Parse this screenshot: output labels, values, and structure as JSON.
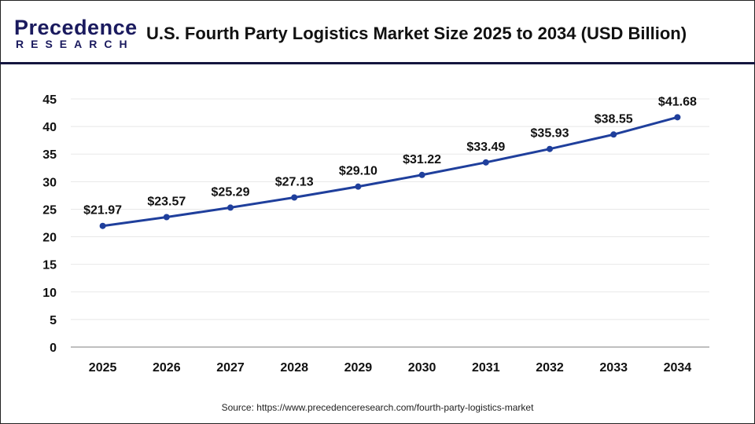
{
  "logo": {
    "line1": "Precedence",
    "line2": "RESEARCH"
  },
  "title": "U.S. Fourth Party Logistics Market Size 2025 to 2034 (USD Billion)",
  "source": "Source: https://www.precedenceresearch.com/fourth-party-logistics-market",
  "chart_data": {
    "type": "line",
    "title": "U.S. Fourth Party Logistics Market Size 2025 to 2034 (USD Billion)",
    "categories": [
      "2025",
      "2026",
      "2027",
      "2028",
      "2029",
      "2030",
      "2031",
      "2032",
      "2033",
      "2034"
    ],
    "values": [
      21.97,
      23.57,
      25.29,
      27.13,
      29.1,
      31.22,
      33.49,
      35.93,
      38.55,
      41.68
    ],
    "data_labels": [
      "$21.97",
      "$23.57",
      "$25.29",
      "$27.13",
      "$29.10",
      "$31.22",
      "$33.49",
      "$35.93",
      "$38.55",
      "$41.68"
    ],
    "yticks": [
      "0",
      "5",
      "10",
      "15",
      "20",
      "25",
      "30",
      "35",
      "40",
      "45"
    ],
    "ylim": [
      0,
      45
    ],
    "grid": true,
    "legend": "none",
    "line_color": "#1f3f9c"
  }
}
